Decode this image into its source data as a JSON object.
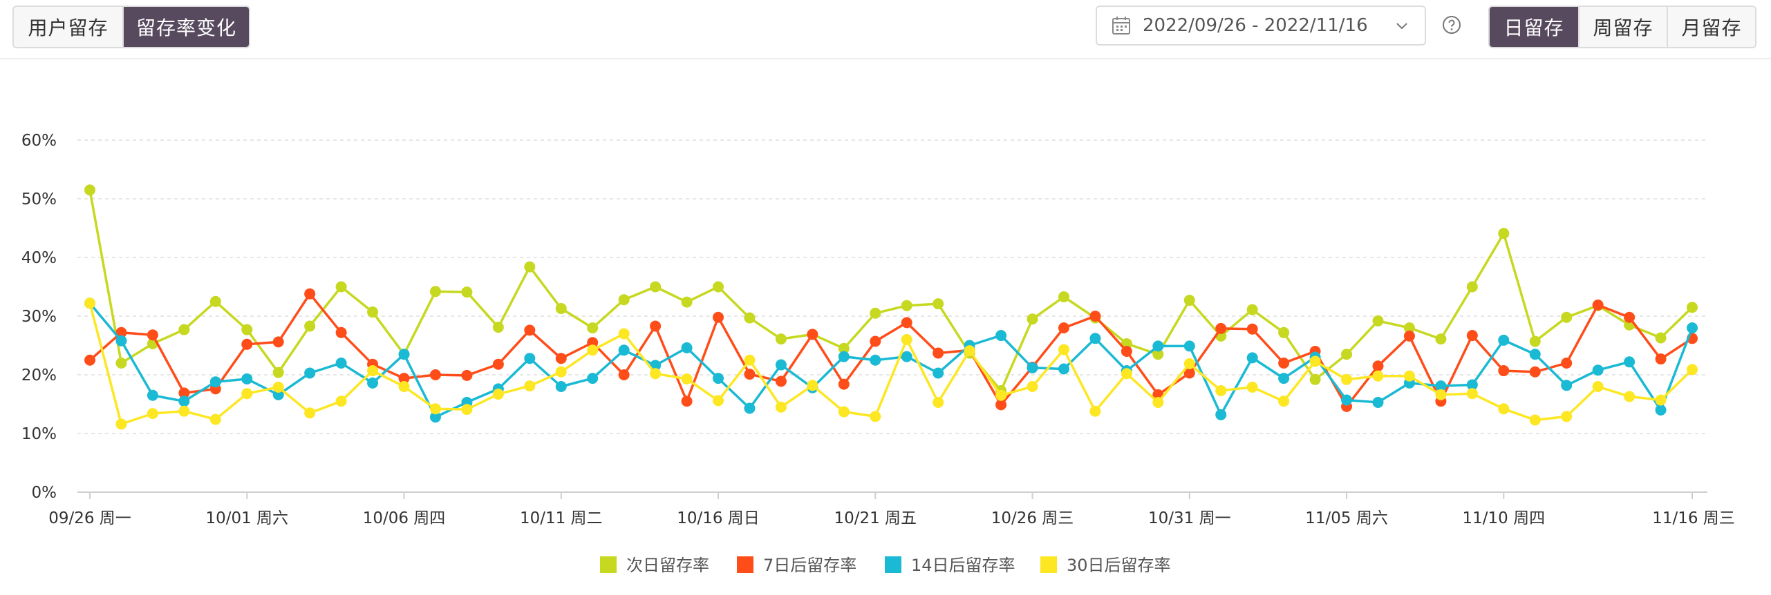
{
  "tabs": [
    {
      "label": "用户留存",
      "active": false
    },
    {
      "label": "留存率变化",
      "active": true
    }
  ],
  "date_range": {
    "label": "2022/09/26 - 2022/11/16"
  },
  "period_tabs": [
    {
      "label": "日留存",
      "active": true
    },
    {
      "label": "周留存",
      "active": false
    },
    {
      "label": "月留存",
      "active": false
    }
  ],
  "icons": {
    "calendar": "calendar-icon",
    "chevron": "chevron-down-icon",
    "help": "help-circle-icon"
  },
  "chart_data": {
    "type": "line",
    "title": "",
    "xlabel": "",
    "ylabel": "",
    "ylim": [
      0,
      60
    ],
    "y_ticks": [
      "0%",
      "10%",
      "20%",
      "30%",
      "40%",
      "50%",
      "60%"
    ],
    "grid": true,
    "legend_position": "bottom",
    "x_tick_labels": [
      {
        "index": 0,
        "label": "09/26 周一"
      },
      {
        "index": 5,
        "label": "10/01 周六"
      },
      {
        "index": 10,
        "label": "10/06 周四"
      },
      {
        "index": 15,
        "label": "10/11 周二"
      },
      {
        "index": 20,
        "label": "10/16 周日"
      },
      {
        "index": 25,
        "label": "10/21 周五"
      },
      {
        "index": 30,
        "label": "10/26 周三"
      },
      {
        "index": 35,
        "label": "10/31 周一"
      },
      {
        "index": 40,
        "label": "11/05 周六"
      },
      {
        "index": 45,
        "label": "11/10 周四"
      },
      {
        "index": 51,
        "label": "11/16 周三"
      }
    ],
    "series": [
      {
        "name": "次日留存率",
        "color": "#c6d81f",
        "values": [
          51.5,
          22,
          25.3,
          27.7,
          32.5,
          27.7,
          20.4,
          28.3,
          35,
          30.7,
          23.5,
          34.2,
          34.1,
          28.1,
          38.4,
          31.3,
          28,
          32.8,
          35,
          32.4,
          35,
          29.7,
          26.1,
          26.9,
          24.5,
          30.5,
          31.8,
          32.1,
          23.7,
          17.3,
          29.5,
          33.3,
          29.7,
          25.3,
          23.5,
          32.7,
          26.6,
          31.1,
          27.2,
          19.2,
          23.5,
          29.2,
          28,
          26.1,
          35,
          44.1,
          25.7,
          29.8,
          31.8,
          28.5,
          26.3,
          31.5
        ]
      },
      {
        "name": "7日后留存率",
        "color": "#ff4d1a",
        "values": [
          22.5,
          27.2,
          26.8,
          16.9,
          17.6,
          25.2,
          25.6,
          33.8,
          27.2,
          21.8,
          19.4,
          20,
          19.9,
          21.8,
          27.6,
          22.8,
          25.5,
          20,
          28.3,
          15.5,
          29.8,
          20.1,
          18.9,
          26.9,
          18.4,
          25.7,
          28.9,
          23.7,
          24.2,
          14.9,
          21.3,
          28,
          30,
          24,
          16.6,
          20.3,
          27.9,
          27.8,
          22,
          24,
          14.6,
          21.5,
          26.6,
          15.5,
          26.7,
          20.7,
          20.5,
          22,
          31.9,
          29.8,
          22.7,
          26.2
        ]
      },
      {
        "name": "14日后留存率",
        "color": "#1ab9d4",
        "values": [
          32.2,
          25.8,
          16.5,
          15.5,
          18.8,
          19.3,
          16.6,
          20.3,
          22,
          18.6,
          23.5,
          12.8,
          15.3,
          17.6,
          22.8,
          18,
          19.4,
          24.2,
          21.6,
          24.6,
          19.4,
          14.3,
          21.7,
          17.8,
          23.1,
          22.5,
          23.1,
          20.3,
          25,
          26.7,
          21.2,
          21,
          26.2,
          20.7,
          24.9,
          24.9,
          13.2,
          22.9,
          19.4,
          23,
          15.7,
          15.3,
          18.6,
          18.1,
          18.3,
          25.9,
          23.5,
          18.2,
          20.8,
          22.2,
          14,
          28
        ]
      },
      {
        "name": "30日后留存率",
        "color": "#fde723",
        "values": [
          32.2,
          11.6,
          13.4,
          13.8,
          12.4,
          16.8,
          17.9,
          13.5,
          15.5,
          20.7,
          18,
          14.2,
          14.1,
          16.7,
          18.1,
          20.5,
          24.2,
          27,
          20.2,
          19.3,
          15.6,
          22.5,
          14.5,
          18.2,
          13.7,
          12.9,
          26,
          15.3,
          24.1,
          16.5,
          18,
          24.3,
          13.8,
          20.2,
          15.3,
          21.9,
          17.3,
          17.9,
          15.5,
          22.3,
          19.2,
          19.8,
          19.8,
          16.6,
          16.8,
          14.2,
          12.3,
          12.9,
          18,
          16.3,
          15.7,
          20.9
        ]
      }
    ]
  }
}
